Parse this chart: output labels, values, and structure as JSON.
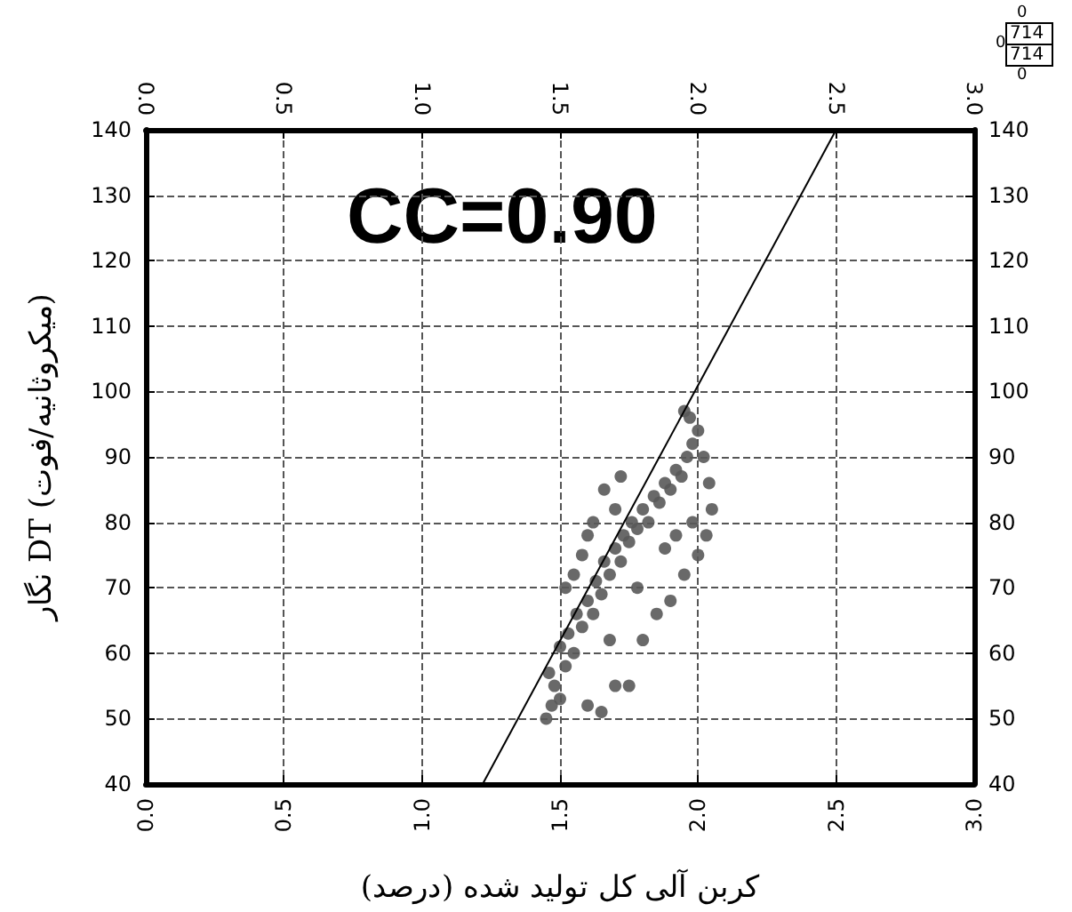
{
  "chart_data": {
    "type": "scatter",
    "xlabel": "کربن آلی کل تولید شده (درصد)",
    "ylabel": "نگار DT (میکروثانیه/فوت)",
    "annotations": [
      "CC=0.90",
      "0",
      "714",
      "714",
      "0",
      "0"
    ],
    "xlim": [
      0,
      3
    ],
    "xticks": [
      {
        "value": 0,
        "label": "0.0"
      },
      {
        "value": 0.5,
        "label": "0.5"
      },
      {
        "value": 1,
        "label": "1.0"
      },
      {
        "value": 1.5,
        "label": "1.5"
      },
      {
        "value": 2,
        "label": "2.0"
      },
      {
        "value": 2.5,
        "label": "2.5"
      },
      {
        "value": 3,
        "label": "3.0"
      }
    ],
    "x2lim": [
      0,
      3
    ],
    "x2ticks": [
      {
        "value": 0,
        "label": "0.0"
      },
      {
        "value": 0.5,
        "label": "0.5"
      },
      {
        "value": 1,
        "label": "1.0"
      },
      {
        "value": 1.5,
        "label": "1.5"
      },
      {
        "value": 2,
        "label": "2.0"
      },
      {
        "value": 2.5,
        "label": "2.5"
      },
      {
        "value": 3,
        "label": "3.0"
      }
    ],
    "ylim": [
      40,
      140
    ],
    "yticks": [
      40,
      50,
      60,
      70,
      80,
      90,
      100,
      110,
      120,
      130,
      140
    ],
    "y2lim": [
      40,
      140
    ],
    "y2ticks": [
      40,
      50,
      60,
      70,
      80,
      90,
      100,
      110,
      120,
      130,
      140
    ],
    "grid": true,
    "marker": "circle",
    "series": [
      {
        "color": "#595959",
        "x": [
          1.45,
          1.47,
          1.48,
          1.46,
          1.5,
          1.52,
          1.5,
          1.53,
          1.55,
          1.56,
          1.58,
          1.6,
          1.62,
          1.63,
          1.65,
          1.66,
          1.68,
          1.7,
          1.72,
          1.73,
          1.75,
          1.76,
          1.78,
          1.8,
          1.82,
          1.84,
          1.86,
          1.88,
          1.9,
          1.92,
          1.94,
          1.96,
          1.98,
          2.0,
          1.97,
          1.95,
          1.6,
          1.65,
          1.7,
          1.75,
          1.8,
          1.85,
          1.58,
          1.62,
          1.66,
          1.7,
          1.72,
          1.9,
          1.95,
          2.0,
          2.03,
          2.05,
          2.04,
          2.02,
          1.98,
          1.92,
          1.88,
          1.55,
          1.6,
          1.52,
          1.68,
          1.78
        ],
        "values": [
          50,
          52,
          55,
          57,
          53,
          58,
          61,
          63,
          60,
          66,
          64,
          68,
          66,
          71,
          69,
          74,
          72,
          76,
          74,
          78,
          77,
          80,
          79,
          82,
          80,
          84,
          83,
          86,
          85,
          88,
          87,
          90,
          92,
          94,
          96,
          97,
          52,
          51,
          55,
          55,
          62,
          66,
          75,
          80,
          85,
          82,
          87,
          68,
          72,
          75,
          78,
          82,
          86,
          90,
          80,
          78,
          76,
          72,
          78,
          70,
          62,
          70
        ]
      },
      {
        "type": "line",
        "color": "#000000",
        "line_style": "solid",
        "marker": "none",
        "x": [
          1.22,
          2.5
        ],
        "values": [
          40,
          140
        ]
      }
    ]
  }
}
